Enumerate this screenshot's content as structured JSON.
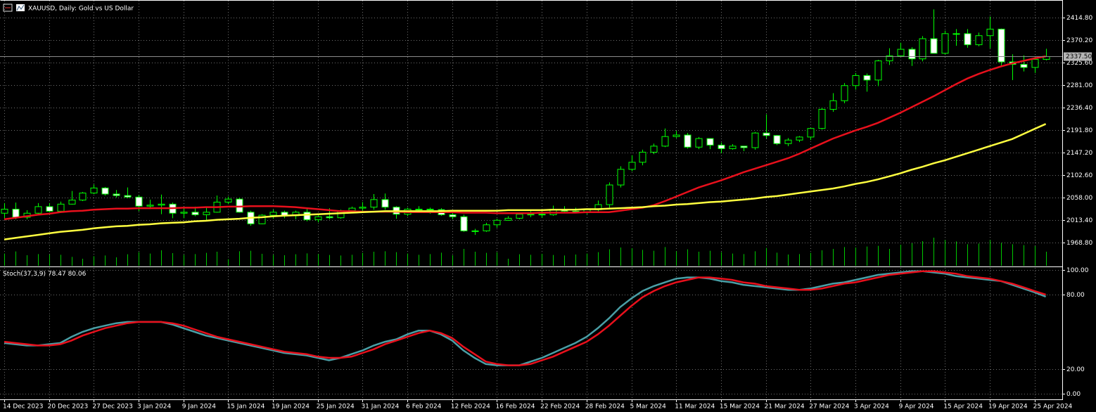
{
  "chart_data": [
    {
      "type": "candlestick",
      "title": "XAUUSD, Daily: Gold vs US Dollar",
      "categories": [
        "14 Dec 2023",
        null,
        null,
        null,
        "20 Dec 2023",
        null,
        null,
        null,
        "27 Dec 2023",
        null,
        null,
        null,
        "3 Jan 2024",
        null,
        null,
        null,
        "9 Jan 2024",
        null,
        null,
        null,
        "15 Jan 2024",
        null,
        null,
        null,
        "19 Jan 2024",
        null,
        null,
        null,
        "25 Jan 2024",
        null,
        null,
        null,
        "31 Jan 2024",
        null,
        null,
        null,
        "6 Feb 2024",
        null,
        null,
        null,
        "12 Feb 2024",
        null,
        null,
        null,
        "16 Feb 2024",
        null,
        null,
        null,
        "22 Feb 2024",
        null,
        null,
        null,
        "28 Feb 2024",
        null,
        null,
        null,
        "5 Mar 2024",
        null,
        null,
        null,
        "11 Mar 2024",
        null,
        null,
        null,
        "15 Mar 2024",
        null,
        null,
        null,
        "21 Mar 2024",
        null,
        null,
        null,
        "27 Mar 2024",
        null,
        null,
        null,
        "3 Apr 2024",
        null,
        null,
        null,
        "9 Apr 2024",
        null,
        null,
        null,
        "15 Apr 2024",
        null,
        null,
        null,
        "19 Apr 2024",
        null,
        null,
        null,
        "25 Apr 2024",
        null
      ],
      "open": [
        2027,
        2035,
        2019,
        2027,
        2040,
        2031,
        2045,
        2053,
        2067,
        2077,
        2065,
        2062,
        2059,
        2041,
        2043,
        2045,
        2027,
        2029,
        2024,
        2029,
        2049,
        2055,
        2029,
        2006,
        2023,
        2029,
        2022,
        2029,
        2014,
        2020,
        2018,
        2032,
        2037,
        2039,
        2054,
        2039,
        2025,
        2035,
        2035,
        2034,
        2024,
        2020,
        1992,
        1992,
        2004,
        2013,
        2017,
        2025,
        2025,
        2024,
        2035,
        2031,
        2029,
        2034,
        2044,
        2083,
        2114,
        2128,
        2148,
        2160,
        2179,
        2182,
        2158,
        2175,
        2162,
        2155,
        2160,
        2157,
        2186,
        2181,
        2165,
        2172,
        2178,
        2195,
        2233,
        2250,
        2280,
        2300,
        2291,
        2329,
        2339,
        2352,
        2333,
        2373,
        2344,
        2383,
        2383,
        2361,
        2379,
        2392,
        2327,
        2322,
        2316,
        2332
      ],
      "high": [
        2047,
        2048,
        2033,
        2047,
        2047,
        2050,
        2071,
        2069,
        2084,
        2079,
        2073,
        2078,
        2063,
        2054,
        2064,
        2048,
        2038,
        2040,
        2040,
        2062,
        2060,
        2058,
        2032,
        2025,
        2034,
        2032,
        2032,
        2036,
        2023,
        2037,
        2034,
        2040,
        2049,
        2065,
        2066,
        2041,
        2038,
        2041,
        2038,
        2037,
        2032,
        2024,
        1996,
        2008,
        2016,
        2021,
        2028,
        2031,
        2035,
        2042,
        2041,
        2038,
        2036,
        2052,
        2088,
        2120,
        2142,
        2153,
        2165,
        2195,
        2190,
        2186,
        2178,
        2175,
        2167,
        2164,
        2160,
        2188,
        2223,
        2182,
        2176,
        2180,
        2196,
        2236,
        2265,
        2285,
        2305,
        2304,
        2331,
        2354,
        2365,
        2356,
        2378,
        2431,
        2389,
        2392,
        2392,
        2385,
        2417,
        2393,
        2342,
        2340,
        2337,
        2353
      ],
      "low": [
        2016,
        2015,
        2015,
        2026,
        2029,
        2028,
        2044,
        2051,
        2065,
        2062,
        2058,
        2057,
        2031,
        2035,
        2025,
        2017,
        2017,
        2021,
        2013,
        2028,
        2045,
        2028,
        2002,
        2005,
        2016,
        2017,
        2015,
        2011,
        2009,
        2015,
        2016,
        2028,
        2030,
        2034,
        2034,
        2016,
        2021,
        2030,
        2026,
        2022,
        2015,
        1990,
        1984,
        1990,
        1998,
        2012,
        2015,
        2019,
        2018,
        2022,
        2028,
        2027,
        2025,
        2031,
        2038,
        2078,
        2110,
        2122,
        2144,
        2158,
        2176,
        2155,
        2154,
        2154,
        2146,
        2153,
        2150,
        2153,
        2175,
        2162,
        2160,
        2168,
        2172,
        2193,
        2228,
        2245,
        2272,
        2268,
        2279,
        2321,
        2337,
        2319,
        2328,
        2344,
        2342,
        2359,
        2355,
        2358,
        2354,
        2320,
        2291,
        2308,
        2305,
        2330
      ],
      "close": [
        2035,
        2019,
        2027,
        2040,
        2031,
        2045,
        2053,
        2067,
        2077,
        2065,
        2062,
        2059,
        2041,
        2043,
        2045,
        2027,
        2029,
        2024,
        2029,
        2049,
        2055,
        2029,
        2006,
        2023,
        2029,
        2022,
        2029,
        2014,
        2020,
        2018,
        2032,
        2037,
        2039,
        2054,
        2039,
        2025,
        2035,
        2035,
        2034,
        2024,
        2020,
        1992,
        1992,
        2004,
        2013,
        2017,
        2025,
        2025,
        2024,
        2035,
        2031,
        2029,
        2034,
        2044,
        2083,
        2114,
        2128,
        2148,
        2160,
        2179,
        2182,
        2158,
        2175,
        2162,
        2155,
        2160,
        2157,
        2186,
        2181,
        2165,
        2172,
        2178,
        2195,
        2233,
        2250,
        2280,
        2300,
        2291,
        2329,
        2339,
        2352,
        2333,
        2373,
        2344,
        2383,
        2383,
        2361,
        2379,
        2392,
        2327,
        2322,
        2316,
        2332,
        2337.5
      ],
      "volume": [
        52000,
        61000,
        45000,
        50000,
        48000,
        47000,
        38000,
        30000,
        41000,
        44000,
        36000,
        49000,
        58000,
        52000,
        66000,
        54000,
        47000,
        50000,
        55000,
        60000,
        28000,
        62000,
        64000,
        51000,
        47000,
        45000,
        49000,
        53000,
        50000,
        46000,
        44000,
        47000,
        55000,
        60000,
        62000,
        58000,
        52000,
        47000,
        50000,
        56000,
        45000,
        72000,
        60000,
        55000,
        58000,
        30000,
        49000,
        47000,
        51000,
        46000,
        44000,
        48000,
        52000,
        58000,
        70000,
        78000,
        75000,
        68000,
        64000,
        80000,
        62000,
        70000,
        60000,
        64000,
        58000,
        52000,
        50000,
        62000,
        76000,
        56000,
        48000,
        50000,
        55000,
        66000,
        72000,
        80000,
        78000,
        82000,
        85000,
        72000,
        90000,
        96000,
        105000,
        120000,
        110000,
        104000,
        92000,
        95000,
        110000,
        98000,
        92000,
        88000,
        84000,
        60000
      ],
      "overlays": [
        {
          "color": "#e8101c",
          "values": [
            2015,
            2018,
            2021,
            2024,
            2026,
            2029,
            2031,
            2032,
            2034,
            2035,
            2036,
            2036,
            2037,
            2037,
            2037,
            2037,
            2038,
            2038,
            2039,
            2039,
            2040,
            2040,
            2041,
            2041,
            2041,
            2040,
            2039,
            2037,
            2035,
            2033,
            2031,
            2031,
            2030,
            2030,
            2030,
            2030,
            2029,
            2029,
            2029,
            2029,
            2029,
            2028,
            2028,
            2028,
            2027,
            2027,
            2027,
            2027,
            2028,
            2028,
            2028,
            2028,
            2029,
            2029,
            2029,
            2032,
            2035,
            2038,
            2043,
            2051,
            2060,
            2069,
            2078,
            2085,
            2092,
            2100,
            2108,
            2115,
            2122,
            2129,
            2136,
            2145,
            2155,
            2165,
            2175,
            2183,
            2191,
            2198,
            2206,
            2216,
            2226,
            2237,
            2248,
            2259,
            2271,
            2283,
            2294,
            2303,
            2311,
            2318,
            2324,
            2329,
            2334,
            2338
          ]
        },
        {
          "color": "#ffff40",
          "values": [
            1975,
            1978,
            1981,
            1984,
            1987,
            1990,
            1992,
            1994,
            1997,
            1999,
            2001,
            2002,
            2004,
            2005,
            2007,
            2008,
            2009,
            2011,
            2012,
            2014,
            2015,
            2016,
            2018,
            2019,
            2021,
            2022,
            2023,
            2024,
            2025,
            2026,
            2027,
            2028,
            2029,
            2030,
            2031,
            2031,
            2031,
            2031,
            2031,
            2031,
            2032,
            2032,
            2032,
            2032,
            2032,
            2033,
            2033,
            2033,
            2033,
            2034,
            2034,
            2034,
            2035,
            2035,
            2036,
            2037,
            2038,
            2039,
            2041,
            2042,
            2044,
            2045,
            2047,
            2049,
            2050,
            2052,
            2054,
            2056,
            2059,
            2061,
            2064,
            2067,
            2070,
            2073,
            2076,
            2080,
            2085,
            2089,
            2094,
            2100,
            2106,
            2113,
            2119,
            2126,
            2132,
            2139,
            2146,
            2153,
            2160,
            2167,
            2174,
            2184,
            2194,
            2204
          ]
        }
      ],
      "bull_color": "#000000",
      "bear_color": "#ffffff",
      "wick_color": "#00ff00",
      "volume_color": "#00c800",
      "current_price": {
        "value": 2337.5,
        "label": "2337.50"
      },
      "ylim": [
        1922.8,
        2448.3
      ],
      "yticks": [
        {
          "value": 1968.8,
          "label": "1968.80"
        },
        {
          "value": 2013.4,
          "label": "2013.40"
        },
        {
          "value": 2058,
          "label": "2058.00"
        },
        {
          "value": 2102.6,
          "label": "2102.60"
        },
        {
          "value": 2147.2,
          "label": "2147.20"
        },
        {
          "value": 2191.8,
          "label": "2191.80"
        },
        {
          "value": 2236.4,
          "label": "2236.40"
        },
        {
          "value": 2281,
          "label": "2281.00"
        },
        {
          "value": 2325.6,
          "label": "2325.60"
        },
        {
          "value": 2370.2,
          "label": "2370.20"
        },
        {
          "value": 2414.8,
          "label": "2414.80"
        }
      ],
      "grid": true
    },
    {
      "type": "line",
      "title": "Stoch(37,3,9)",
      "series": [
        {
          "color": "#4a9fa6",
          "values": [
            41,
            40,
            39,
            39,
            40,
            41,
            46,
            50,
            53,
            55,
            57,
            58,
            58,
            58,
            58,
            56,
            53,
            50,
            47,
            45,
            43,
            41,
            39,
            37,
            35,
            33,
            32,
            31,
            29,
            27,
            29,
            32,
            35,
            39,
            42,
            44,
            48,
            51,
            51,
            48,
            43,
            35,
            29,
            24,
            23,
            23,
            23,
            26,
            29,
            33,
            37,
            41,
            46,
            53,
            61,
            70,
            77,
            83,
            87,
            90,
            93,
            94,
            94,
            93,
            91,
            90,
            88,
            87,
            86,
            85,
            84,
            84,
            85,
            87,
            89,
            90,
            92,
            94,
            96,
            97,
            98,
            99,
            99,
            98,
            97,
            95,
            94,
            93,
            92,
            91,
            88,
            85,
            82,
            78.47
          ]
        },
        {
          "color": "#e8101c",
          "values": [
            42,
            41,
            40,
            39,
            39,
            40,
            43,
            47,
            50,
            53,
            55,
            57,
            58,
            58,
            58,
            57,
            55,
            52,
            49,
            46,
            44,
            42,
            40,
            38,
            36,
            34,
            33,
            32,
            30,
            29,
            29,
            30,
            33,
            36,
            40,
            43,
            46,
            49,
            51,
            49,
            45,
            38,
            32,
            26,
            24,
            23,
            23,
            24,
            27,
            30,
            34,
            38,
            42,
            48,
            55,
            63,
            71,
            78,
            83,
            87,
            90,
            92,
            94,
            94,
            93,
            92,
            90,
            89,
            87,
            86,
            85,
            84,
            84,
            85,
            87,
            89,
            90,
            92,
            94,
            96,
            97,
            98,
            99,
            99,
            98,
            97,
            95,
            94,
            93,
            91,
            89,
            86,
            83,
            80.06
          ]
        }
      ],
      "ylim": [
        -4.5,
        101.7
      ],
      "yticks": [
        {
          "value": 0,
          "label": "0.00"
        },
        {
          "value": 20,
          "label": "20.00"
        },
        {
          "value": 80,
          "label": "80.00"
        },
        {
          "value": 100,
          "label": "100.00"
        }
      ],
      "grid": true
    }
  ]
}
